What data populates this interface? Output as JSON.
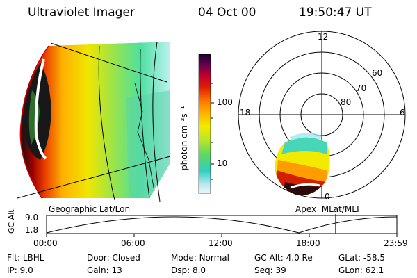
{
  "header": {
    "instrument": "Ultraviolet Imager",
    "date": "04 Oct 00",
    "time": "19:50:47 UT"
  },
  "colorbar": {
    "unit_label": "photon cm⁻²s⁻¹",
    "ticks": [
      "100",
      "10"
    ],
    "scale": "log"
  },
  "left_panel": {
    "caption": "Geographic Lat/Lon"
  },
  "right_panel": {
    "caption": "Apex  MLat/MLT",
    "mlt_labels": [
      "12",
      "18",
      "6",
      "0"
    ],
    "lat_labels": [
      "60",
      "70",
      "80"
    ]
  },
  "orbit_plot": {
    "ylabel": "GC Alt",
    "yticks": [
      "9.0",
      "1.8"
    ],
    "xticks": [
      "00:00",
      "06:00",
      "12:00",
      "18:00",
      "23:59"
    ],
    "current_time_fraction": 0.825
  },
  "status": {
    "rows": [
      [
        {
          "k": "Flt:",
          "v": "LBHL"
        },
        {
          "k": "Door:",
          "v": "Closed"
        },
        {
          "k": "Mode:",
          "v": "Normal"
        },
        {
          "k": "GC Alt:",
          "v": "4.0 Re"
        },
        {
          "k": "GLat:",
          "v": "-58.5"
        }
      ],
      [
        {
          "k": "IP:",
          "v": "9.0"
        },
        {
          "k": "Gain:",
          "v": "13"
        },
        {
          "k": "Dsp:",
          "v": "8.0"
        },
        {
          "k": "Seq:",
          "v": "39"
        },
        {
          "k": "GLon:",
          "v": "62.1"
        }
      ]
    ]
  },
  "colors": {
    "accent_line": "#d00000"
  }
}
